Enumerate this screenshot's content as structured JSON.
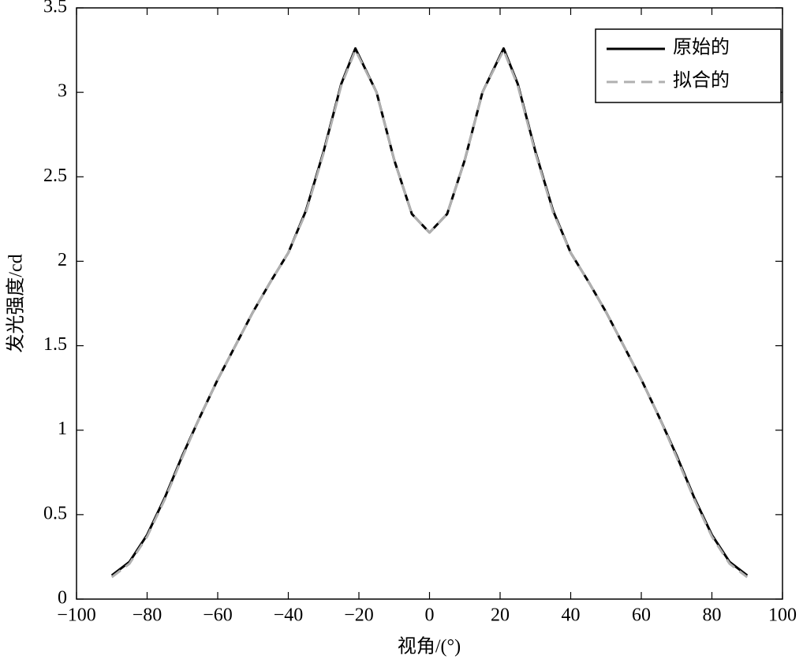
{
  "chart_data": {
    "type": "line",
    "xlabel": "视角/(°)",
    "ylabel": "发光强度/cd",
    "x": [
      -90,
      -85,
      -80,
      -75,
      -70,
      -65,
      -60,
      -55,
      -50,
      -45,
      -40,
      -35,
      -30,
      -25,
      -21,
      -15,
      -10,
      -5,
      0,
      5,
      10,
      15,
      21,
      25,
      30,
      35,
      40,
      45,
      50,
      55,
      60,
      65,
      70,
      75,
      80,
      85,
      90
    ],
    "series": [
      {
        "name": "原始的",
        "color": "#000000",
        "dash": false,
        "values": [
          0.14,
          0.22,
          0.38,
          0.6,
          0.85,
          1.08,
          1.3,
          1.5,
          1.7,
          1.88,
          2.05,
          2.3,
          2.65,
          3.05,
          3.26,
          3.0,
          2.6,
          2.28,
          2.17,
          2.28,
          2.6,
          3.0,
          3.26,
          3.05,
          2.65,
          2.3,
          2.05,
          1.88,
          1.7,
          1.5,
          1.3,
          1.08,
          0.85,
          0.6,
          0.38,
          0.22,
          0.14
        ]
      },
      {
        "name": "拟合的",
        "color": "#b0b0b0",
        "dash": true,
        "values": [
          0.13,
          0.21,
          0.37,
          0.59,
          0.84,
          1.08,
          1.3,
          1.5,
          1.7,
          1.88,
          2.05,
          2.29,
          2.64,
          3.04,
          3.25,
          3.0,
          2.6,
          2.28,
          2.17,
          2.28,
          2.6,
          3.0,
          3.25,
          3.04,
          2.64,
          2.29,
          2.05,
          1.88,
          1.7,
          1.5,
          1.3,
          1.08,
          0.84,
          0.59,
          0.37,
          0.21,
          0.13
        ]
      }
    ],
    "xlim": [
      -100,
      100
    ],
    "xticks": [
      {
        "value": -100,
        "label": "−100"
      },
      {
        "value": -80,
        "label": "−80"
      },
      {
        "value": -60,
        "label": "−60"
      },
      {
        "value": -40,
        "label": "−40"
      },
      {
        "value": -20,
        "label": "−20"
      },
      0,
      20,
      40,
      60,
      80,
      100
    ],
    "ylim": [
      0,
      3.5
    ],
    "yticks": [
      0,
      0.5,
      1,
      1.5,
      2,
      2.5,
      3,
      3.5
    ],
    "legend": "upper right",
    "grid": false
  }
}
